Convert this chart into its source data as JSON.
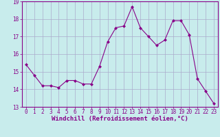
{
  "x": [
    0,
    1,
    2,
    3,
    4,
    5,
    6,
    7,
    8,
    9,
    10,
    11,
    12,
    13,
    14,
    15,
    16,
    17,
    18,
    19,
    20,
    21,
    22,
    23
  ],
  "y": [
    15.4,
    14.8,
    14.2,
    14.2,
    14.1,
    14.5,
    14.5,
    14.3,
    14.3,
    15.3,
    16.7,
    17.5,
    17.6,
    18.7,
    17.5,
    17.0,
    16.5,
    16.8,
    17.9,
    17.9,
    17.1,
    14.6,
    13.9,
    13.2
  ],
  "line_color": "#880088",
  "marker_color": "#880088",
  "bg_color": "#c8ecec",
  "grid_color": "#aaaacc",
  "xlabel": "Windchill (Refroidissement éolien,°C)",
  "xlabel_color": "#880088",
  "tick_color": "#880088",
  "ylim": [
    13,
    19
  ],
  "xlim": [
    -0.5,
    23.5
  ],
  "yticks": [
    13,
    14,
    15,
    16,
    17,
    18,
    19
  ],
  "xticks": [
    0,
    1,
    2,
    3,
    4,
    5,
    6,
    7,
    8,
    9,
    10,
    11,
    12,
    13,
    14,
    15,
    16,
    17,
    18,
    19,
    20,
    21,
    22,
    23
  ],
  "tick_fontsize": 5.5,
  "label_fontsize": 6.5
}
